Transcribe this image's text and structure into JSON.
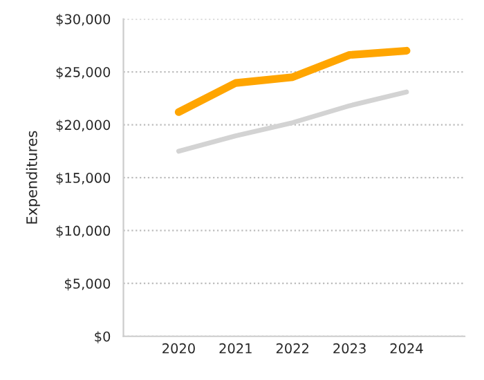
{
  "chart_data": {
    "type": "line",
    "ylabel": "Expenditures",
    "categories": [
      "2020",
      "2021",
      "2022",
      "2023",
      "2024"
    ],
    "series": [
      {
        "color": "#ffa500",
        "values": [
          21200,
          23950,
          24500,
          26600,
          27000
        ]
      },
      {
        "color": "#d3d3d3",
        "values": [
          17500,
          18950,
          20200,
          21800,
          23100
        ]
      }
    ],
    "ylim": [
      0,
      30000
    ],
    "yticks": [
      {
        "value": 0,
        "label": "$0"
      },
      {
        "value": 5000,
        "label": "$5,000"
      },
      {
        "value": 10000,
        "label": "$10,000"
      },
      {
        "value": 15000,
        "label": "$15,000"
      },
      {
        "value": 20000,
        "label": "$20,000"
      },
      {
        "value": 25000,
        "label": "$25,000"
      },
      {
        "value": 30000,
        "label": "$30,000"
      }
    ],
    "grid": "y",
    "legend": false,
    "marker": "none",
    "line_style": "solid"
  }
}
